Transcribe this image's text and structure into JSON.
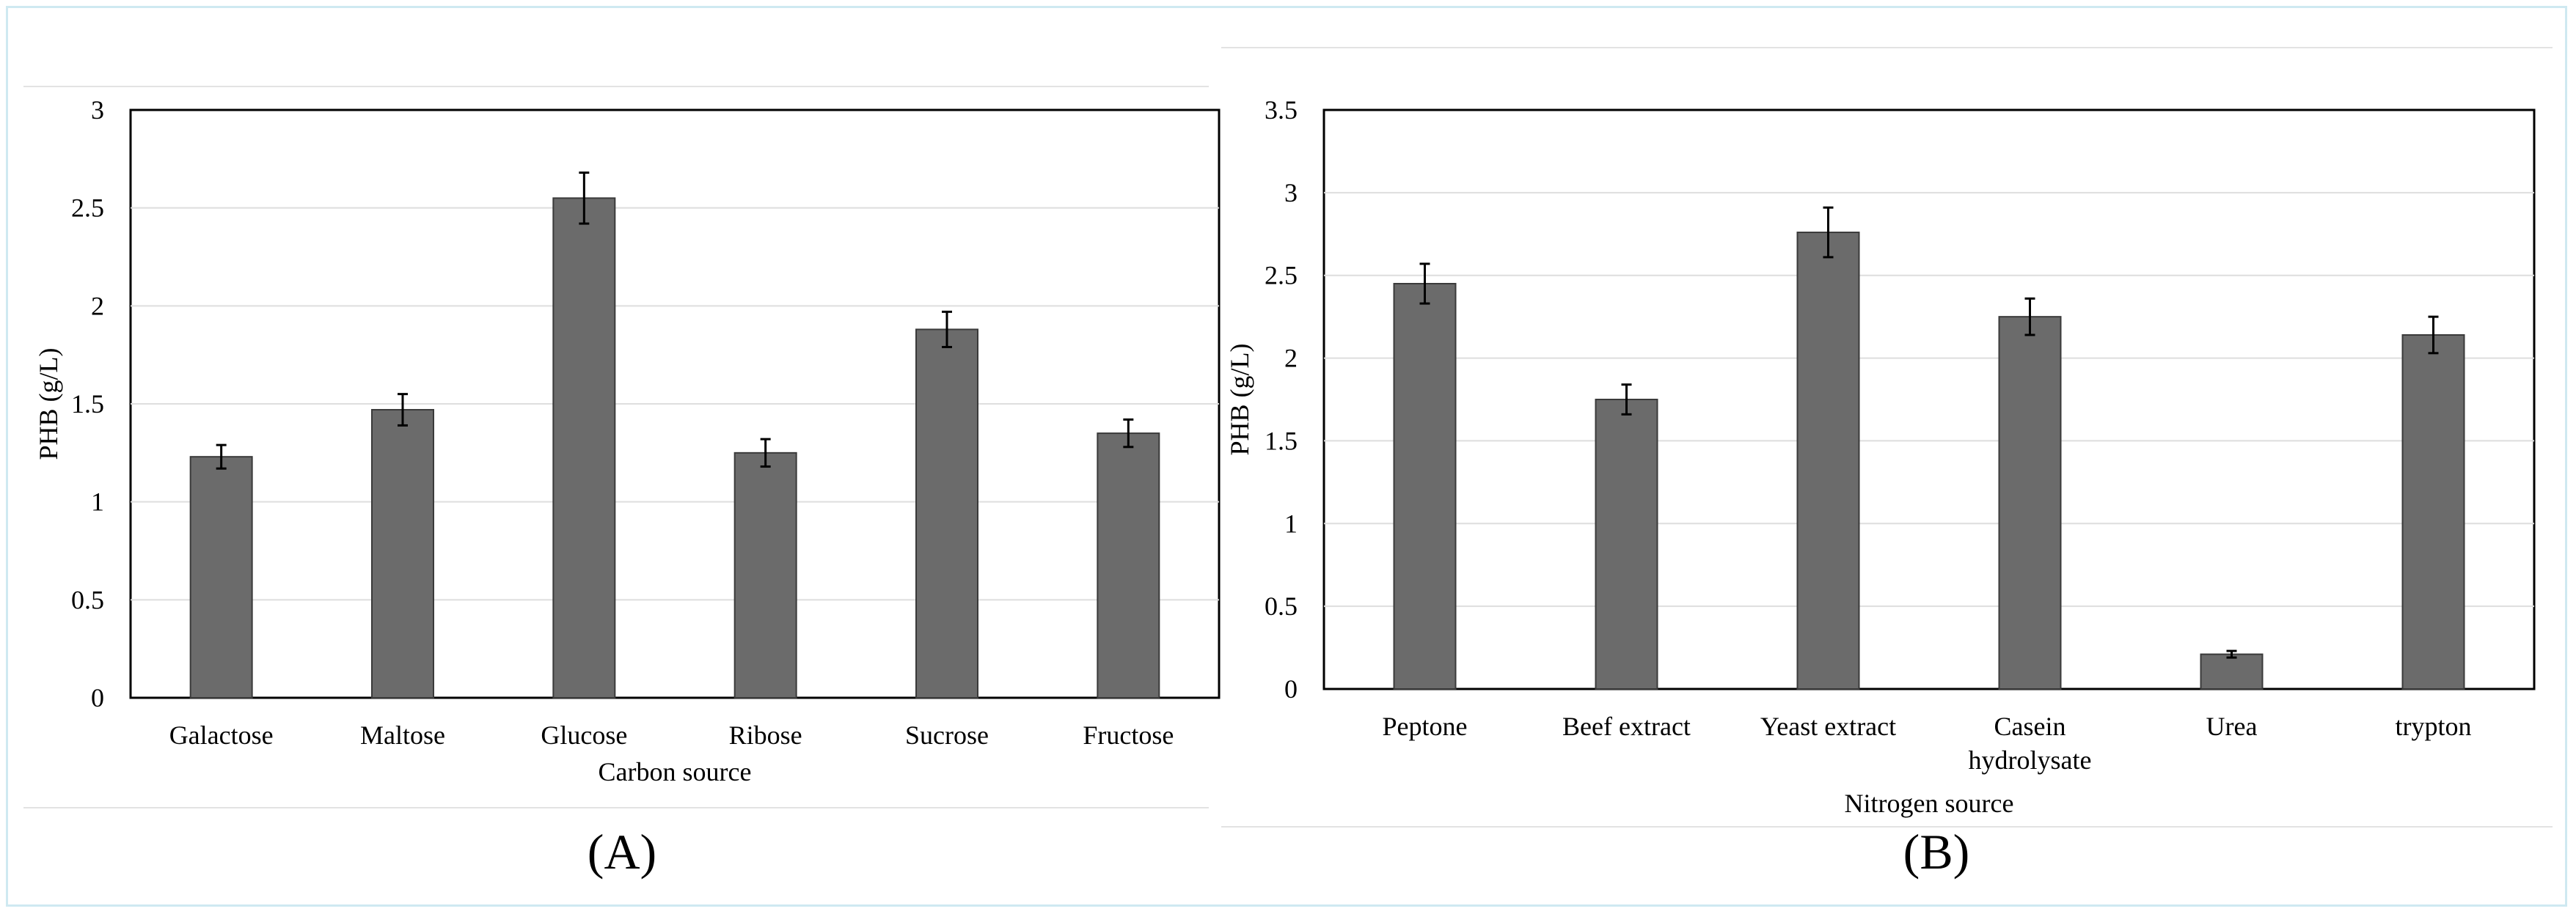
{
  "chart_data": [
    {
      "type": "bar",
      "panel_label": "(A)",
      "xlabel": "Carbon source",
      "ylabel": "PHB (g/L)",
      "ylim": [
        0,
        3
      ],
      "yticks": [
        "0",
        "0.5",
        "1",
        "1.5",
        "2",
        "2.5",
        "3"
      ],
      "categories": [
        [
          "Galactose"
        ],
        [
          "Maltose"
        ],
        [
          "Glucose"
        ],
        [
          "Ribose"
        ],
        [
          "Sucrose"
        ],
        [
          "Fructose"
        ]
      ],
      "values": [
        1.23,
        1.47,
        2.55,
        1.25,
        1.88,
        1.35
      ],
      "errors": [
        0.06,
        0.08,
        0.13,
        0.07,
        0.09,
        0.07
      ],
      "colors": {
        "bar": "#6b6b6b"
      }
    },
    {
      "type": "bar",
      "panel_label": "(B)",
      "xlabel": "Nitrogen source",
      "ylabel": "PHB (g/L)",
      "ylim": [
        0,
        3.5
      ],
      "yticks": [
        "0",
        "0.5",
        "1",
        "1.5",
        "2",
        "2.5",
        "3",
        "3.5"
      ],
      "categories": [
        [
          "Peptone"
        ],
        [
          "Beef extract"
        ],
        [
          "Yeast extract"
        ],
        [
          "Casein",
          "hydrolysate"
        ],
        [
          "Urea"
        ],
        [
          "trypton"
        ]
      ],
      "values": [
        2.45,
        1.75,
        2.76,
        2.25,
        0.21,
        2.14
      ],
      "errors": [
        0.12,
        0.09,
        0.15,
        0.11,
        0.02,
        0.11
      ],
      "colors": {
        "bar": "#6b6b6b"
      }
    }
  ]
}
